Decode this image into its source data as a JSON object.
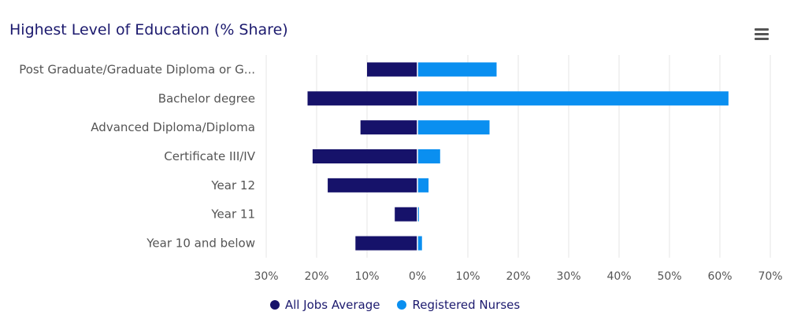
{
  "colors": {
    "all_jobs": "#16126a",
    "nurses": "#0a8ff0",
    "grid": "#e6e6e6",
    "text": "#555555",
    "title": "#1c1a6e"
  },
  "header": {
    "title": "Highest Level of Education (% Share)",
    "menu_icon": "hamburger-menu-icon"
  },
  "legend": {
    "items": [
      "All Jobs Average",
      "Registered Nurses"
    ]
  },
  "chart_data": {
    "type": "bar",
    "orientation": "horizontal",
    "title": "Highest Level of Education (% Share)",
    "categories": [
      "Post Graduate/Graduate Diploma or G...",
      "Bachelor degree",
      "Advanced Diploma/Diploma",
      "Certificate III/IV",
      "Year 12",
      "Year 11",
      "Year 10 and below"
    ],
    "series": [
      {
        "name": "All Jobs Average",
        "values": [
          -10,
          -21.8,
          -11.3,
          -20.8,
          -17.8,
          -4.5,
          -12.3
        ]
      },
      {
        "name": "Registered Nurses",
        "values": [
          15.7,
          61.7,
          14.3,
          4.5,
          2.2,
          0.3,
          0.9
        ]
      }
    ],
    "xlim": [
      -30,
      70
    ],
    "ticks": [
      -30,
      -20,
      -10,
      0,
      10,
      20,
      30,
      40,
      50,
      60,
      70
    ],
    "tick_labels": [
      "30%",
      "20%",
      "10%",
      "0%",
      "10%",
      "20%",
      "30%",
      "40%",
      "50%",
      "60%",
      "70%"
    ],
    "grid": true,
    "legend_position": "bottom"
  }
}
